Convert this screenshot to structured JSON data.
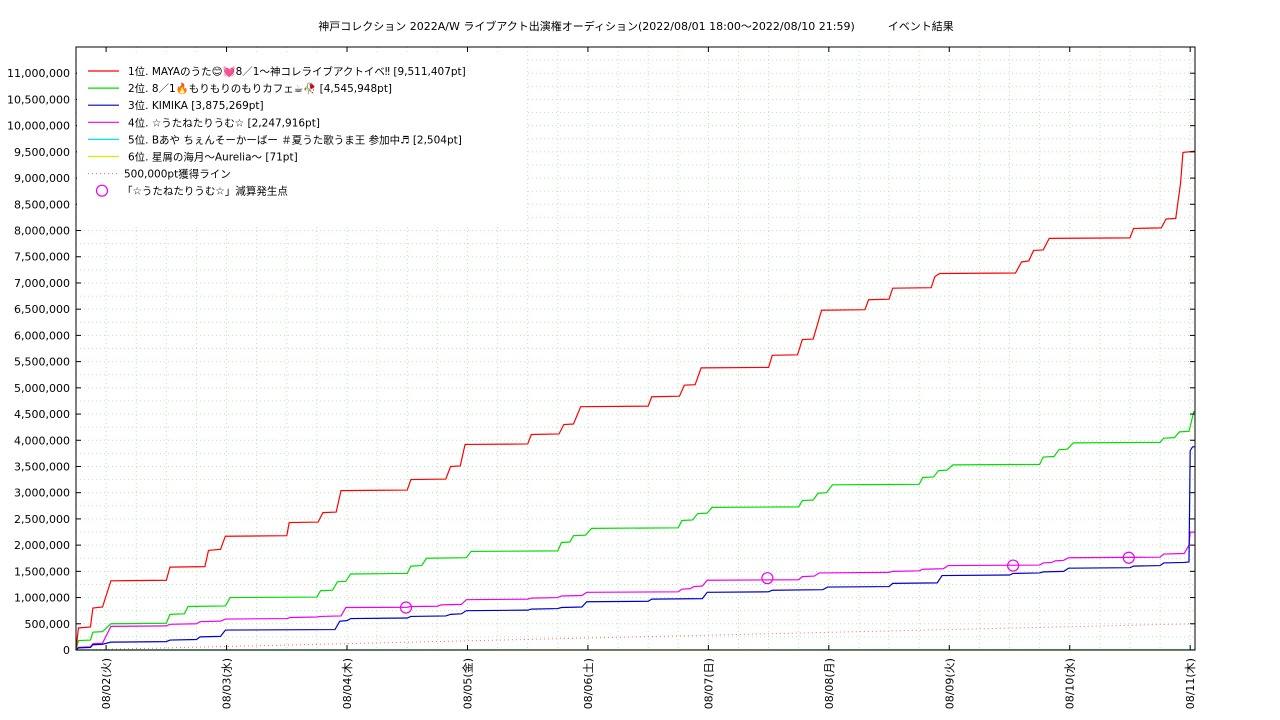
{
  "chart_data": {
    "type": "line",
    "title": "神戸コレクション 2022A/W ライブアクト出演権オーディション(2022/08/01 18:00〜2022/08/10 21:59)　　　イベント結果",
    "xlabel": "",
    "ylabel": "",
    "x_range_days_from_0802": [
      -0.25,
      9.04
    ],
    "ylim": [
      0,
      11500000
    ],
    "grid": true,
    "legend_position": "top-left",
    "y_ticks": [
      "0",
      "500,000",
      "1,000,000",
      "1,500,000",
      "2,000,000",
      "2,500,000",
      "3,000,000",
      "3,500,000",
      "4,000,000",
      "4,500,000",
      "5,000,000",
      "5,500,000",
      "6,000,000",
      "6,500,000",
      "7,000,000",
      "7,500,000",
      "8,000,000",
      "8,500,000",
      "9,000,000",
      "9,500,000",
      "10,000,000",
      "10,500,000",
      "11,000,000"
    ],
    "x_ticks": [
      "08/02(火)",
      "08/03(水)",
      "08/04(木)",
      "08/05(金)",
      "08/06(土)",
      "08/07(日)",
      "08/08(月)",
      "08/09(火)",
      "08/10(水)",
      "08/11(木)"
    ],
    "series": [
      {
        "name": "1位. MAYAのうた😊💓8／1〜神コレライブアクトイベ‼ [9,511,407pt]",
        "color": "#ff0000",
        "points": [
          [
            -0.25,
            0
          ],
          [
            -0.23,
            420000
          ],
          [
            -0.13,
            440000
          ],
          [
            -0.11,
            800000
          ],
          [
            -0.03,
            820000
          ],
          [
            0.04,
            1320000
          ],
          [
            0.5,
            1330000
          ],
          [
            0.53,
            1580000
          ],
          [
            0.82,
            1590000
          ],
          [
            0.85,
            1900000
          ],
          [
            0.95,
            1920000
          ],
          [
            0.99,
            2170000
          ],
          [
            1.5,
            2180000
          ],
          [
            1.52,
            2430000
          ],
          [
            1.76,
            2440000
          ],
          [
            1.8,
            2620000
          ],
          [
            1.91,
            2630000
          ],
          [
            1.95,
            3040000
          ],
          [
            2.5,
            3050000
          ],
          [
            2.53,
            3250000
          ],
          [
            2.82,
            3260000
          ],
          [
            2.86,
            3500000
          ],
          [
            2.94,
            3510000
          ],
          [
            2.98,
            3920000
          ],
          [
            3.5,
            3930000
          ],
          [
            3.53,
            4110000
          ],
          [
            3.76,
            4120000
          ],
          [
            3.8,
            4300000
          ],
          [
            3.88,
            4310000
          ],
          [
            3.94,
            4640000
          ],
          [
            4.5,
            4650000
          ],
          [
            4.53,
            4830000
          ],
          [
            4.76,
            4840000
          ],
          [
            4.8,
            5050000
          ],
          [
            4.89,
            5060000
          ],
          [
            4.94,
            5380000
          ],
          [
            5.5,
            5390000
          ],
          [
            5.53,
            5620000
          ],
          [
            5.74,
            5630000
          ],
          [
            5.78,
            5920000
          ],
          [
            5.87,
            5930000
          ],
          [
            5.94,
            6480000
          ],
          [
            6.3,
            6490000
          ],
          [
            6.33,
            6680000
          ],
          [
            6.5,
            6690000
          ],
          [
            6.53,
            6900000
          ],
          [
            6.85,
            6910000
          ],
          [
            6.88,
            7120000
          ],
          [
            6.92,
            7180000
          ],
          [
            7.55,
            7190000
          ],
          [
            7.6,
            7400000
          ],
          [
            7.66,
            7420000
          ],
          [
            7.7,
            7620000
          ],
          [
            7.78,
            7630000
          ],
          [
            7.83,
            7850000
          ],
          [
            8.5,
            7860000
          ],
          [
            8.53,
            8040000
          ],
          [
            8.76,
            8050000
          ],
          [
            8.8,
            8220000
          ],
          [
            8.88,
            8230000
          ],
          [
            8.92,
            8900000
          ],
          [
            8.94,
            9490000
          ],
          [
            9.04,
            9511407
          ]
        ]
      },
      {
        "name": "2位. 8／1🔥もりもりのもりカフェ☕🥀 [4,545,948pt]",
        "color": "#00dd00",
        "points": [
          [
            -0.25,
            0
          ],
          [
            -0.23,
            180000
          ],
          [
            -0.13,
            190000
          ],
          [
            -0.11,
            340000
          ],
          [
            -0.03,
            350000
          ],
          [
            0.04,
            500000
          ],
          [
            0.5,
            510000
          ],
          [
            0.53,
            680000
          ],
          [
            0.65,
            690000
          ],
          [
            0.68,
            830000
          ],
          [
            0.99,
            840000
          ],
          [
            1.03,
            1000000
          ],
          [
            1.75,
            1010000
          ],
          [
            1.78,
            1130000
          ],
          [
            1.88,
            1140000
          ],
          [
            1.92,
            1300000
          ],
          [
            1.99,
            1310000
          ],
          [
            2.03,
            1450000
          ],
          [
            2.5,
            1460000
          ],
          [
            2.53,
            1600000
          ],
          [
            2.62,
            1610000
          ],
          [
            2.66,
            1750000
          ],
          [
            2.99,
            1760000
          ],
          [
            3.03,
            1880000
          ],
          [
            3.75,
            1890000
          ],
          [
            3.78,
            2050000
          ],
          [
            3.85,
            2060000
          ],
          [
            3.88,
            2180000
          ],
          [
            3.98,
            2190000
          ],
          [
            4.03,
            2320000
          ],
          [
            4.75,
            2330000
          ],
          [
            4.78,
            2470000
          ],
          [
            4.87,
            2480000
          ],
          [
            4.91,
            2600000
          ],
          [
            4.99,
            2610000
          ],
          [
            5.03,
            2720000
          ],
          [
            5.75,
            2730000
          ],
          [
            5.78,
            2850000
          ],
          [
            5.87,
            2860000
          ],
          [
            5.91,
            2990000
          ],
          [
            5.98,
            3000000
          ],
          [
            6.03,
            3150000
          ],
          [
            6.75,
            3160000
          ],
          [
            6.78,
            3290000
          ],
          [
            6.87,
            3300000
          ],
          [
            6.91,
            3420000
          ],
          [
            6.98,
            3430000
          ],
          [
            7.03,
            3530000
          ],
          [
            7.75,
            3540000
          ],
          [
            7.78,
            3680000
          ],
          [
            7.87,
            3690000
          ],
          [
            7.91,
            3820000
          ],
          [
            7.98,
            3830000
          ],
          [
            8.03,
            3950000
          ],
          [
            8.75,
            3960000
          ],
          [
            8.78,
            4040000
          ],
          [
            8.87,
            4050000
          ],
          [
            8.91,
            4160000
          ],
          [
            8.99,
            4170000
          ],
          [
            9.03,
            4545948
          ],
          [
            9.04,
            4545948
          ]
        ]
      },
      {
        "name": "3位. KIMIKA [3,875,269pt]",
        "color": "#0000cc",
        "points": [
          [
            -0.25,
            0
          ],
          [
            -0.23,
            40000
          ],
          [
            -0.13,
            50000
          ],
          [
            -0.11,
            100000
          ],
          [
            -0.03,
            110000
          ],
          [
            0.04,
            150000
          ],
          [
            0.5,
            160000
          ],
          [
            0.53,
            190000
          ],
          [
            0.75,
            200000
          ],
          [
            0.78,
            250000
          ],
          [
            0.95,
            260000
          ],
          [
            0.99,
            380000
          ],
          [
            1.9,
            390000
          ],
          [
            1.94,
            550000
          ],
          [
            2.0,
            560000
          ],
          [
            2.03,
            600000
          ],
          [
            2.5,
            610000
          ],
          [
            2.53,
            640000
          ],
          [
            2.82,
            650000
          ],
          [
            2.86,
            680000
          ],
          [
            2.95,
            690000
          ],
          [
            2.99,
            750000
          ],
          [
            3.5,
            760000
          ],
          [
            3.53,
            780000
          ],
          [
            3.75,
            790000
          ],
          [
            3.78,
            810000
          ],
          [
            3.95,
            820000
          ],
          [
            3.99,
            920000
          ],
          [
            4.5,
            930000
          ],
          [
            4.53,
            970000
          ],
          [
            4.95,
            980000
          ],
          [
            4.99,
            1100000
          ],
          [
            5.5,
            1110000
          ],
          [
            5.53,
            1140000
          ],
          [
            5.95,
            1150000
          ],
          [
            5.99,
            1200000
          ],
          [
            6.5,
            1210000
          ],
          [
            6.53,
            1270000
          ],
          [
            6.9,
            1280000
          ],
          [
            6.94,
            1420000
          ],
          [
            7.5,
            1430000
          ],
          [
            7.53,
            1460000
          ],
          [
            7.75,
            1470000
          ],
          [
            7.78,
            1490000
          ],
          [
            7.95,
            1500000
          ],
          [
            7.99,
            1560000
          ],
          [
            8.5,
            1570000
          ],
          [
            8.53,
            1600000
          ],
          [
            8.75,
            1610000
          ],
          [
            8.78,
            1660000
          ],
          [
            8.95,
            1670000
          ],
          [
            8.99,
            1680000
          ],
          [
            9.0,
            3800000
          ],
          [
            9.02,
            3875269
          ],
          [
            9.04,
            3875269
          ]
        ]
      },
      {
        "name": "4位. ☆うたねたりうむ☆ [2,247,916pt]",
        "color": "#ee00ee",
        "points": [
          [
            -0.25,
            0
          ],
          [
            -0.23,
            50000
          ],
          [
            -0.13,
            60000
          ],
          [
            -0.11,
            120000
          ],
          [
            -0.03,
            130000
          ],
          [
            0.04,
            450000
          ],
          [
            0.5,
            460000
          ],
          [
            0.53,
            490000
          ],
          [
            0.75,
            500000
          ],
          [
            0.78,
            540000
          ],
          [
            0.95,
            550000
          ],
          [
            0.99,
            590000
          ],
          [
            1.5,
            600000
          ],
          [
            1.53,
            620000
          ],
          [
            1.75,
            630000
          ],
          [
            1.78,
            640000
          ],
          [
            1.95,
            650000
          ],
          [
            1.99,
            810000
          ],
          [
            2.5,
            815000
          ],
          [
            2.53,
            830000
          ],
          [
            2.75,
            835000
          ],
          [
            2.78,
            860000
          ],
          [
            2.95,
            870000
          ],
          [
            2.99,
            960000
          ],
          [
            3.5,
            970000
          ],
          [
            3.53,
            990000
          ],
          [
            3.75,
            1000000
          ],
          [
            3.78,
            1030000
          ],
          [
            3.95,
            1040000
          ],
          [
            3.99,
            1100000
          ],
          [
            4.75,
            1110000
          ],
          [
            4.78,
            1160000
          ],
          [
            4.85,
            1170000
          ],
          [
            4.88,
            1210000
          ],
          [
            4.95,
            1220000
          ],
          [
            4.99,
            1330000
          ],
          [
            5.75,
            1340000
          ],
          [
            5.78,
            1400000
          ],
          [
            5.88,
            1410000
          ],
          [
            5.92,
            1470000
          ],
          [
            6.5,
            1480000
          ],
          [
            6.53,
            1500000
          ],
          [
            6.75,
            1510000
          ],
          [
            6.78,
            1540000
          ],
          [
            6.95,
            1550000
          ],
          [
            6.99,
            1610000
          ],
          [
            7.75,
            1620000
          ],
          [
            7.78,
            1660000
          ],
          [
            7.85,
            1670000
          ],
          [
            7.88,
            1700000
          ],
          [
            7.95,
            1710000
          ],
          [
            7.99,
            1760000
          ],
          [
            8.75,
            1770000
          ],
          [
            8.78,
            1830000
          ],
          [
            8.95,
            1840000
          ],
          [
            8.99,
            2000000
          ],
          [
            9.0,
            2247916
          ],
          [
            9.04,
            2247916
          ]
        ]
      },
      {
        "name": "5位. Bあや ちぇんそーかーばー ＃夏うた歌うま王 参加中♬ [2,504pt]",
        "color": "#00e5e5",
        "points": [
          [
            -0.25,
            0
          ],
          [
            9.04,
            2504
          ]
        ]
      },
      {
        "name": "6位. 星屑の海月〜Aurelia〜 [71pt]",
        "color": "#e5e500",
        "points": [
          [
            -0.25,
            0
          ],
          [
            9.04,
            71
          ]
        ]
      }
    ],
    "reference_line": {
      "name": "500,000pt獲得ライン",
      "color": "#ff6666",
      "points": [
        [
          -0.25,
          0
        ],
        [
          9.04,
          500000
        ]
      ]
    },
    "markers": {
      "name": "「☆うたねたりうむ☆」減算発生点",
      "color": "#ee00ee",
      "points": [
        [
          2.49,
          810000
        ],
        [
          5.49,
          1370000
        ],
        [
          7.53,
          1610000
        ],
        [
          8.49,
          1760000
        ]
      ]
    }
  }
}
